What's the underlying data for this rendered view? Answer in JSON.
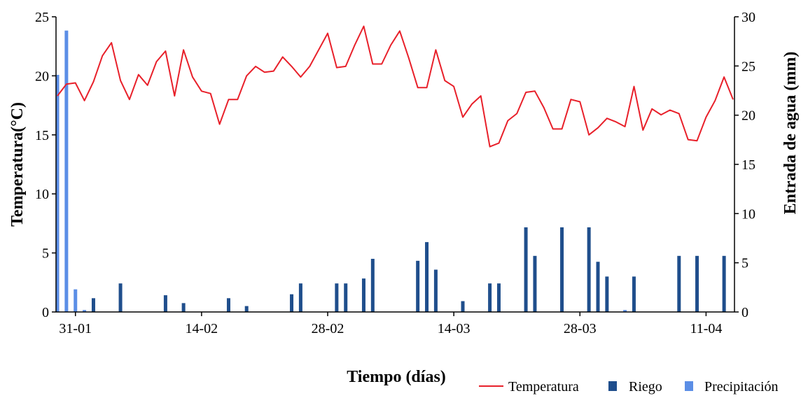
{
  "chart_data": {
    "type": "bar+line",
    "title": "",
    "xlabel": "Tiempo (días)",
    "ylabel_left": "Temperatura(°C)",
    "ylabel_right": "Entrada de agua (mm)",
    "ylim_left": [
      0,
      25
    ],
    "ylim_right": [
      0,
      30
    ],
    "yticks_left": [
      "0",
      "5",
      "10",
      "15",
      "20",
      "25"
    ],
    "yticks_right": [
      "0",
      "5",
      "10",
      "15",
      "20",
      "25",
      "30"
    ],
    "x_range": [
      "2023-01-29",
      "2023-04-14"
    ],
    "x_tick_labels": [
      {
        "date": "2023-01-31",
        "label": "31-01"
      },
      {
        "date": "2023-02-14",
        "label": "14-02"
      },
      {
        "date": "2023-02-28",
        "label": "28-02"
      },
      {
        "date": "2023-03-14",
        "label": "14-03"
      },
      {
        "date": "2023-03-28",
        "label": "28-03"
      },
      {
        "date": "2023-04-11",
        "label": "11-04"
      }
    ],
    "grid": false,
    "legend_position": "bottom-right",
    "colors": {
      "temperatura": "#e8202a",
      "riego": "#1f4e8c",
      "precipitacion": "#5b8ee6"
    },
    "series": [
      {
        "name": "Temperatura",
        "type": "line",
        "axis": "left",
        "x": [
          "2023-01-29",
          "2023-01-30",
          "2023-01-31",
          "2023-02-01",
          "2023-02-02",
          "2023-02-03",
          "2023-02-04",
          "2023-02-05",
          "2023-02-06",
          "2023-02-07",
          "2023-02-08",
          "2023-02-09",
          "2023-02-10",
          "2023-02-11",
          "2023-02-12",
          "2023-02-13",
          "2023-02-14",
          "2023-02-15",
          "2023-02-16",
          "2023-02-17",
          "2023-02-18",
          "2023-02-19",
          "2023-02-20",
          "2023-02-21",
          "2023-02-22",
          "2023-02-23",
          "2023-02-24",
          "2023-02-25",
          "2023-02-26",
          "2023-02-27",
          "2023-02-28",
          "2023-03-01",
          "2023-03-02",
          "2023-03-03",
          "2023-03-04",
          "2023-03-05",
          "2023-03-06",
          "2023-03-07",
          "2023-03-08",
          "2023-03-09",
          "2023-03-10",
          "2023-03-11",
          "2023-03-12",
          "2023-03-13",
          "2023-03-14",
          "2023-03-15",
          "2023-03-16",
          "2023-03-17",
          "2023-03-18",
          "2023-03-19",
          "2023-03-20",
          "2023-03-21",
          "2023-03-22",
          "2023-03-23",
          "2023-03-24",
          "2023-03-25",
          "2023-03-26",
          "2023-03-27",
          "2023-03-28",
          "2023-03-29",
          "2023-03-30",
          "2023-03-31",
          "2023-04-01",
          "2023-04-02",
          "2023-04-03",
          "2023-04-04",
          "2023-04-05",
          "2023-04-06",
          "2023-04-07",
          "2023-04-08",
          "2023-04-09",
          "2023-04-10",
          "2023-04-11",
          "2023-04-12",
          "2023-04-13",
          "2023-04-14"
        ],
        "values": [
          18.3,
          19.3,
          19.4,
          17.9,
          19.5,
          21.7,
          22.8,
          19.6,
          18.0,
          20.1,
          19.2,
          21.2,
          22.1,
          18.3,
          22.2,
          19.9,
          18.7,
          18.5,
          15.9,
          18.0,
          18.0,
          20.0,
          20.8,
          20.3,
          20.4,
          21.6,
          20.8,
          19.9,
          20.8,
          22.2,
          23.6,
          20.7,
          20.8,
          22.6,
          24.2,
          21.0,
          21.0,
          22.6,
          23.8,
          21.5,
          19.0,
          19.0,
          22.2,
          19.6,
          19.1,
          16.5,
          17.6,
          18.3,
          14.0,
          14.3,
          16.2,
          16.8,
          18.6,
          18.7,
          17.3,
          15.5,
          15.5,
          18.0,
          17.8,
          15.0,
          15.6,
          16.4,
          16.1,
          15.7,
          19.1,
          15.4,
          17.2,
          16.7,
          17.1,
          16.8,
          14.6,
          14.5,
          16.5,
          17.9,
          19.9,
          18.0
        ]
      },
      {
        "name": "Riego",
        "type": "bar",
        "axis": "right",
        "x": [
          "2023-02-02",
          "2023-02-05",
          "2023-02-10",
          "2023-02-12",
          "2023-02-17",
          "2023-02-19",
          "2023-02-24",
          "2023-02-25",
          "2023-03-01",
          "2023-03-02",
          "2023-03-04",
          "2023-03-05",
          "2023-03-10",
          "2023-03-11",
          "2023-03-12",
          "2023-03-15",
          "2023-03-18",
          "2023-03-19",
          "2023-03-22",
          "2023-03-23",
          "2023-03-26",
          "2023-03-29",
          "2023-03-30",
          "2023-03-31",
          "2023-04-03",
          "2023-04-08",
          "2023-04-10",
          "2023-04-13"
        ],
        "values": [
          1.4,
          2.9,
          1.7,
          0.9,
          1.4,
          0.6,
          1.8,
          2.9,
          2.9,
          2.9,
          3.4,
          5.4,
          5.2,
          7.1,
          4.3,
          1.1,
          2.9,
          2.9,
          8.6,
          5.7,
          8.6,
          8.6,
          5.1,
          3.6,
          3.6,
          5.7,
          5.7,
          5.7
        ]
      },
      {
        "name": "Precipitación",
        "type": "bar",
        "axis": "right",
        "x": [
          "2023-01-29",
          "2023-01-30",
          "2023-01-31",
          "2023-02-01",
          "2023-02-02",
          "2023-03-15",
          "2023-04-02"
        ],
        "values": [
          24.1,
          28.6,
          2.3,
          0.2,
          0.1,
          0.1,
          0.2
        ]
      }
    ]
  }
}
